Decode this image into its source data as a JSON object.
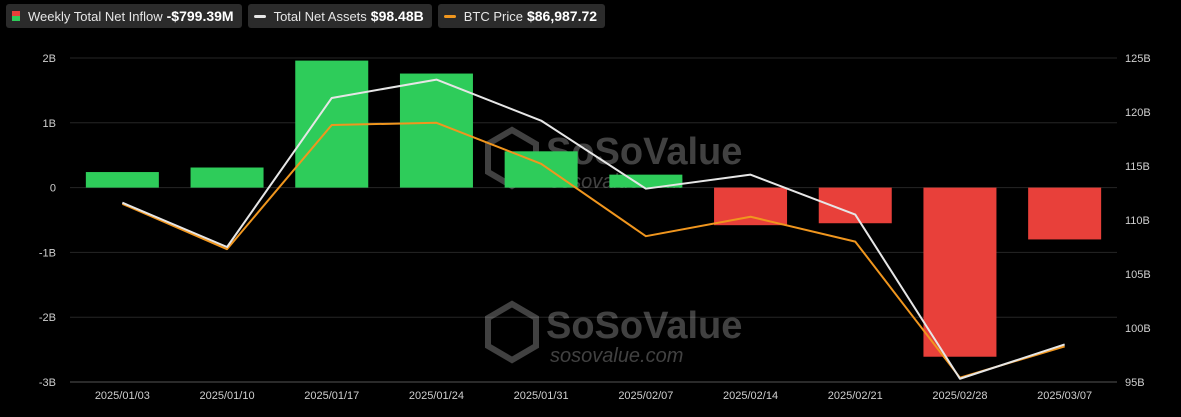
{
  "legend": {
    "inflow": {
      "label": "Weekly Total Net Inflow",
      "value": "-$799.39M",
      "pos_color": "#2ecc5a",
      "neg_color": "#e8403a"
    },
    "assets": {
      "label": "Total Net Assets",
      "value": "$98.48B",
      "color": "#e6e6e6"
    },
    "btc": {
      "label": "BTC Price",
      "value": "$86,987.72",
      "color": "#f0961e"
    }
  },
  "watermark": {
    "brand": "SoSoValue",
    "site": "sosovalue.com"
  },
  "chart_data": {
    "type": "bar",
    "categories": [
      "2025/01/03",
      "2025/01/10",
      "2025/01/17",
      "2025/01/24",
      "2025/01/31",
      "2025/02/07",
      "2025/02/14",
      "2025/02/21",
      "2025/02/28",
      "2025/03/07"
    ],
    "series": [
      {
        "name": "Weekly Total Net Inflow",
        "type": "bar",
        "axis": "left",
        "unit": "B",
        "values": [
          0.24,
          0.31,
          1.96,
          1.76,
          0.56,
          0.2,
          -0.58,
          -0.55,
          -2.61,
          -0.8
        ]
      },
      {
        "name": "Total Net Assets",
        "type": "line",
        "axis": "right",
        "unit": "B",
        "values": [
          111.6,
          107.5,
          121.3,
          123.0,
          119.2,
          112.9,
          114.2,
          110.5,
          95.3,
          98.48
        ]
      },
      {
        "name": "BTC Price",
        "type": "line",
        "axis": "right",
        "values": [
          111.5,
          107.3,
          118.8,
          119.0,
          115.2,
          108.5,
          110.3,
          108.0,
          95.4,
          98.3
        ]
      }
    ],
    "y_left": {
      "ticks": [
        "2B",
        "1B",
        "0",
        "-1B",
        "-2B",
        "-3B"
      ],
      "min": -3,
      "max": 2
    },
    "y_right": {
      "ticks": [
        "125B",
        "120B",
        "115B",
        "110B",
        "105B",
        "100B",
        "95B"
      ],
      "min": 95,
      "max": 125
    },
    "grid": true
  }
}
